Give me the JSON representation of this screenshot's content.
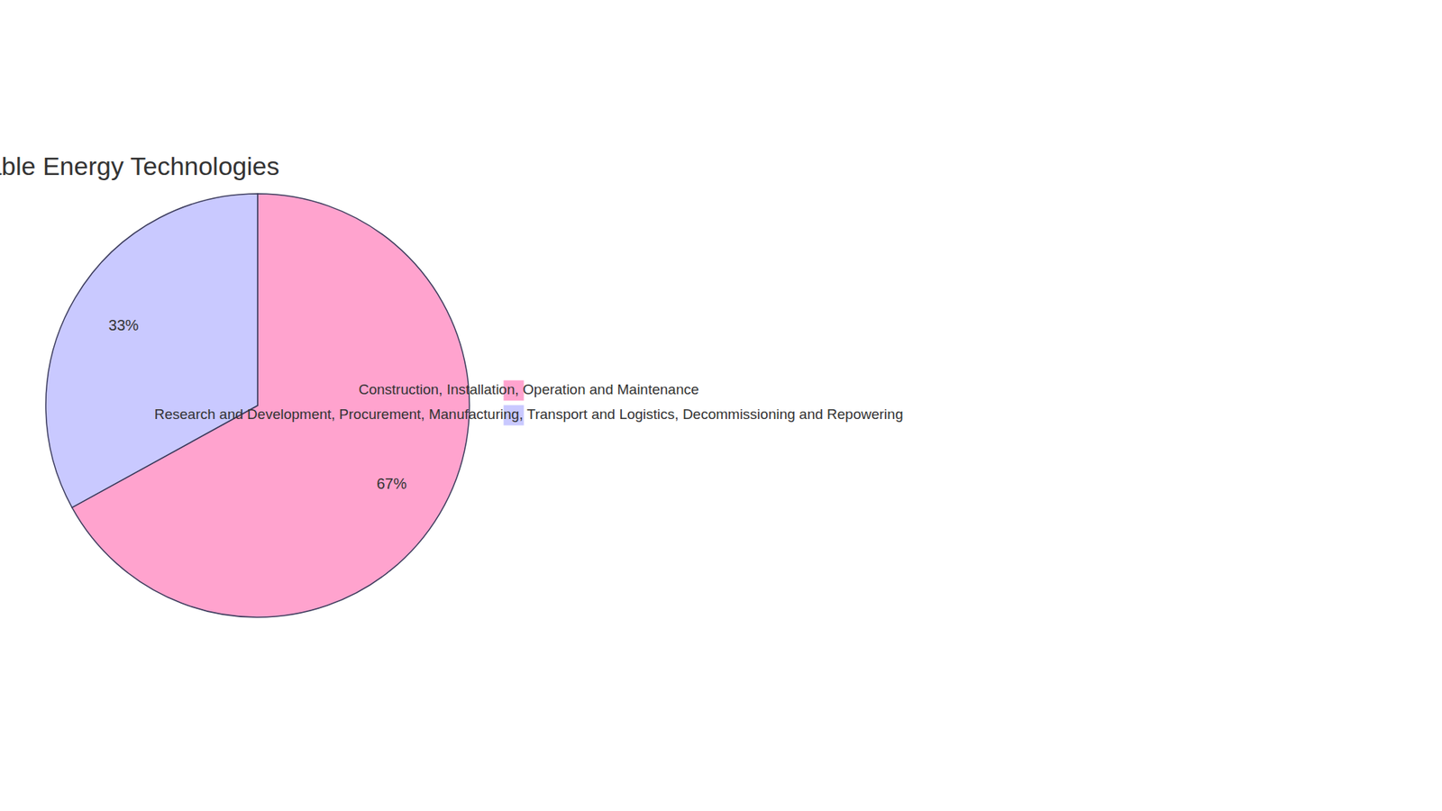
{
  "chart_data": {
    "type": "pie",
    "title": "Distribution of Renewable Energy Technologies",
    "categories": [
      "Construction, Installation, Operation and Maintenance",
      "Research and Development, Procurement, Manufacturing, Transport and Logistics, Decommissioning and Repowering"
    ],
    "values": [
      67,
      33
    ],
    "value_labels": [
      "67%",
      "33%"
    ],
    "colors": [
      "#ffa3ce",
      "#c9c9ff"
    ],
    "data_labels": true,
    "legend": "right"
  }
}
